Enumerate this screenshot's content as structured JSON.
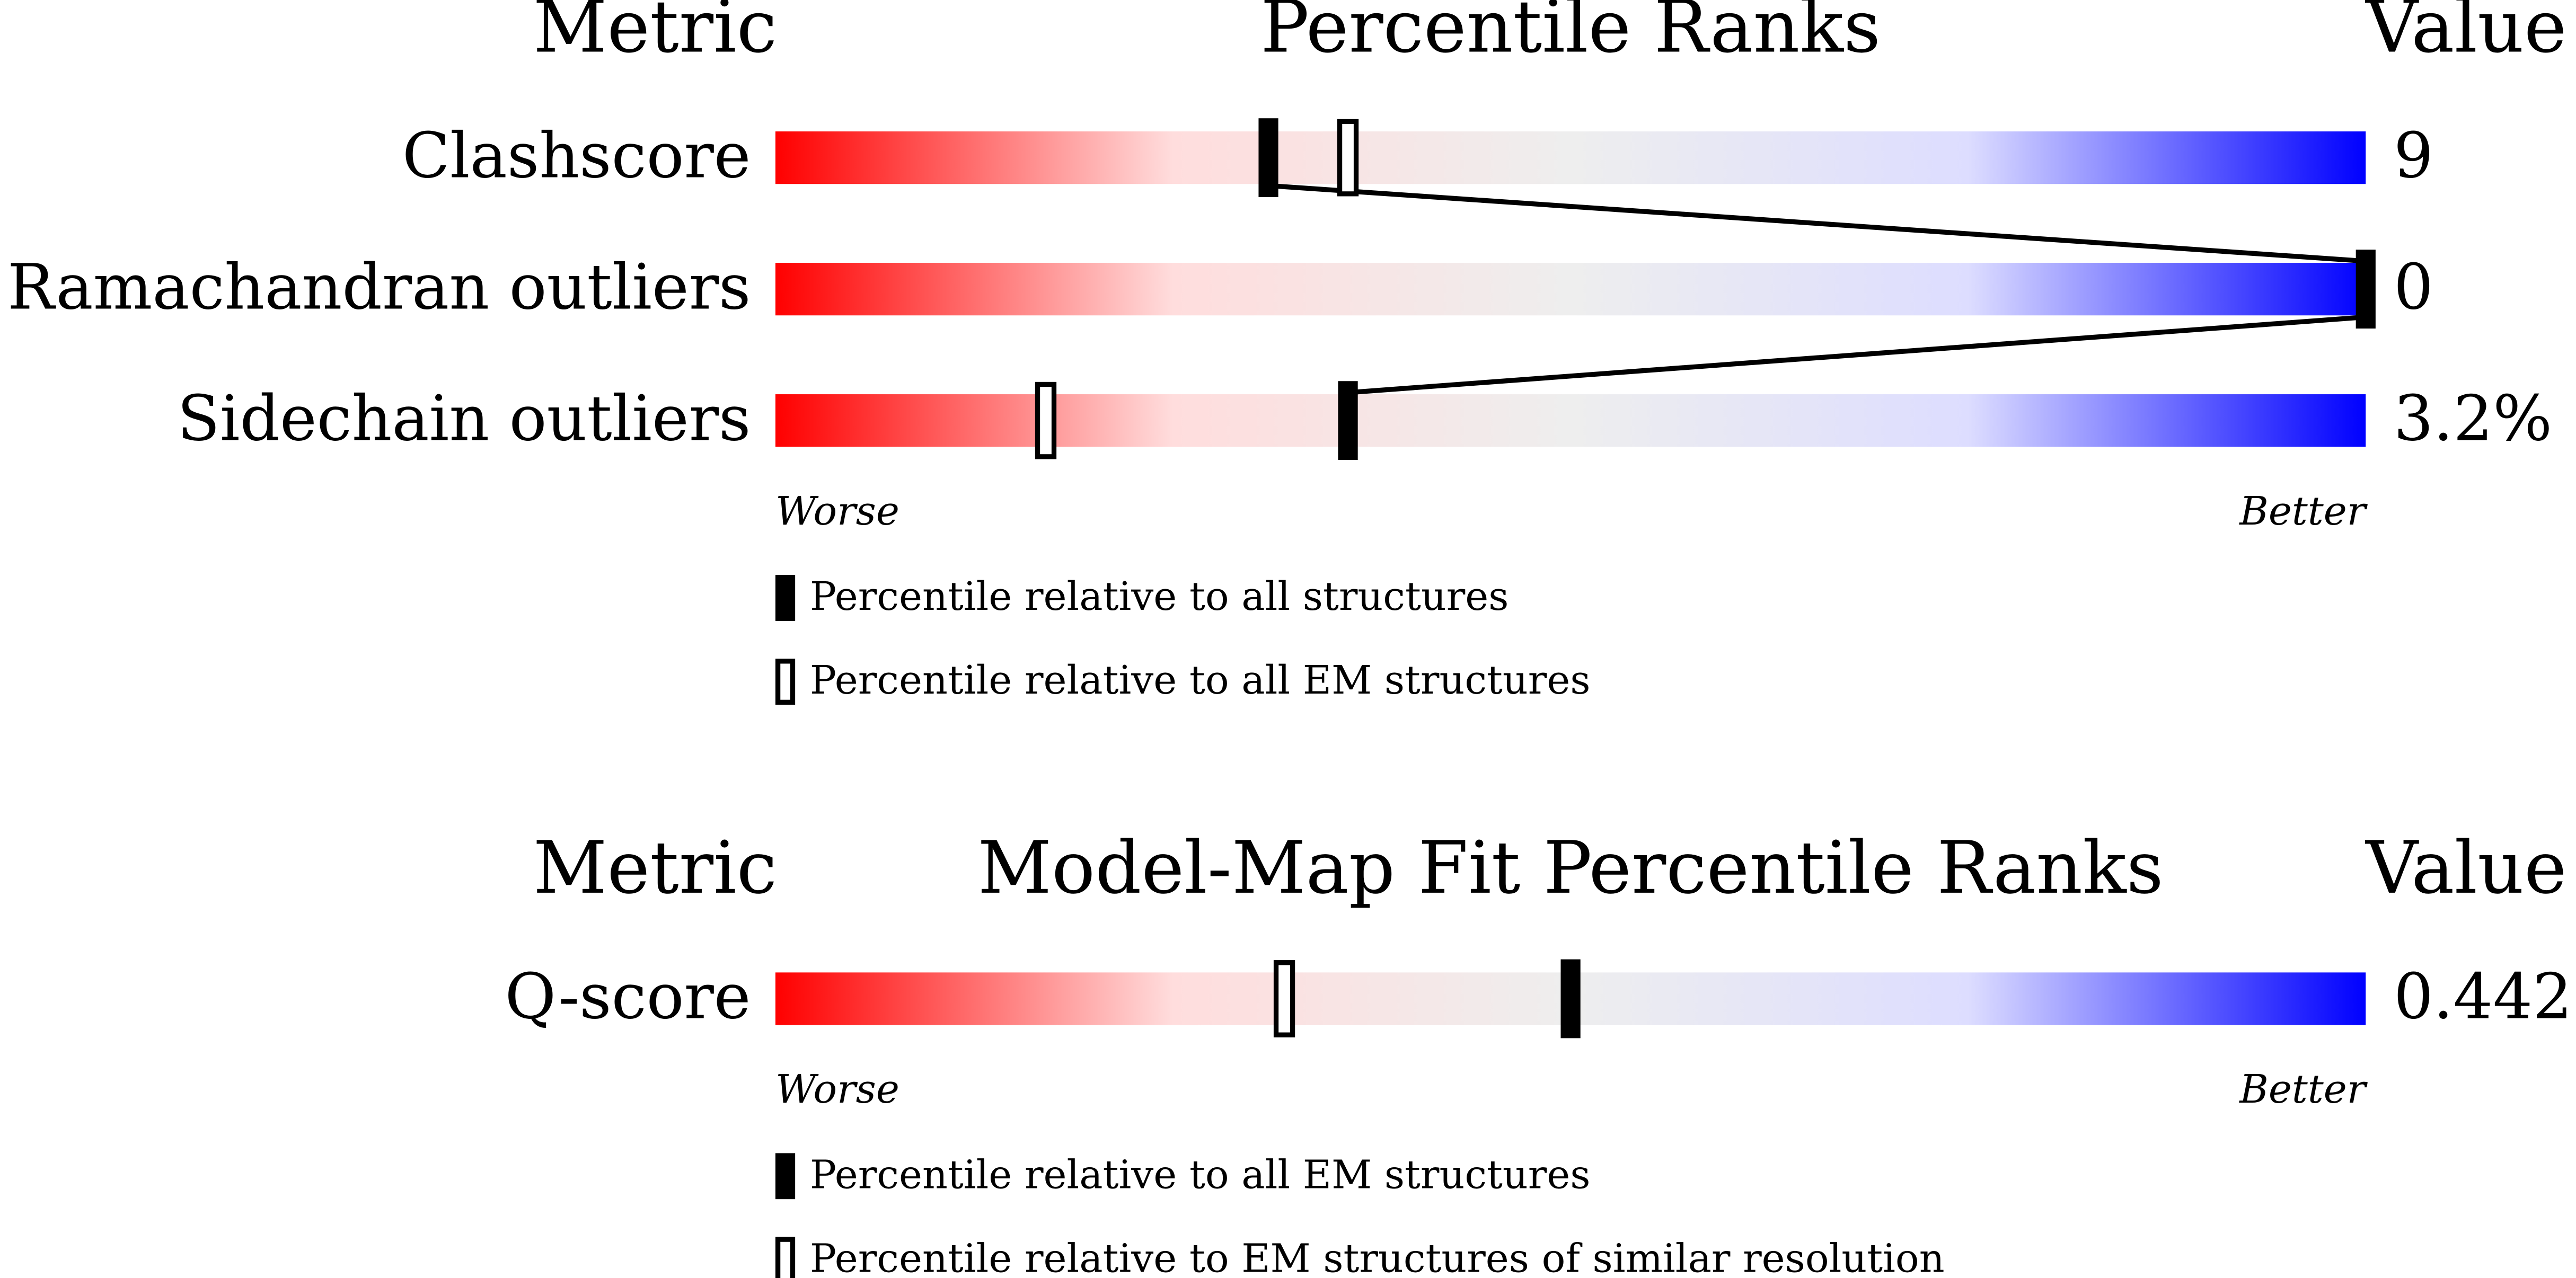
{
  "chart_data": [
    {
      "type": "slider",
      "title": "Percentile Ranks",
      "metric_header": "Metric",
      "value_header": "Value",
      "categories": [
        "Clashscore",
        "Ramachandran outliers",
        "Sidechain outliers"
      ],
      "value_texts": [
        "9",
        "0",
        "3.2%"
      ],
      "xlim": [
        0,
        100
      ],
      "low_label": "Worse",
      "high_label": "Better",
      "gradient": [
        "#ff0000",
        "#ffdddd",
        "#eeeeee",
        "#ddddff",
        "#0000ff"
      ],
      "series": [
        {
          "name": "Percentile relative to all structures",
          "style": "filled",
          "color": "#000000",
          "values": [
            31,
            100,
            36
          ]
        },
        {
          "name": "Percentile relative to all EM structures",
          "style": "open",
          "color": "#000000",
          "values": [
            36,
            null,
            17
          ]
        }
      ]
    },
    {
      "type": "slider",
      "title": "Model-Map Fit Percentile Ranks",
      "metric_header": "Metric",
      "value_header": "Value",
      "categories": [
        "Q-score"
      ],
      "value_texts": [
        "0.442"
      ],
      "xlim": [
        0,
        100
      ],
      "low_label": "Worse",
      "high_label": "Better",
      "gradient": [
        "#ff0000",
        "#ffdddd",
        "#eeeeee",
        "#ddddff",
        "#0000ff"
      ],
      "series": [
        {
          "name": "Percentile relative to all EM structures",
          "style": "filled",
          "color": "#000000",
          "values": [
            50
          ]
        },
        {
          "name": "Percentile relative to EM structures of similar resolution",
          "style": "open",
          "color": "#000000",
          "values": [
            32
          ]
        }
      ]
    }
  ]
}
